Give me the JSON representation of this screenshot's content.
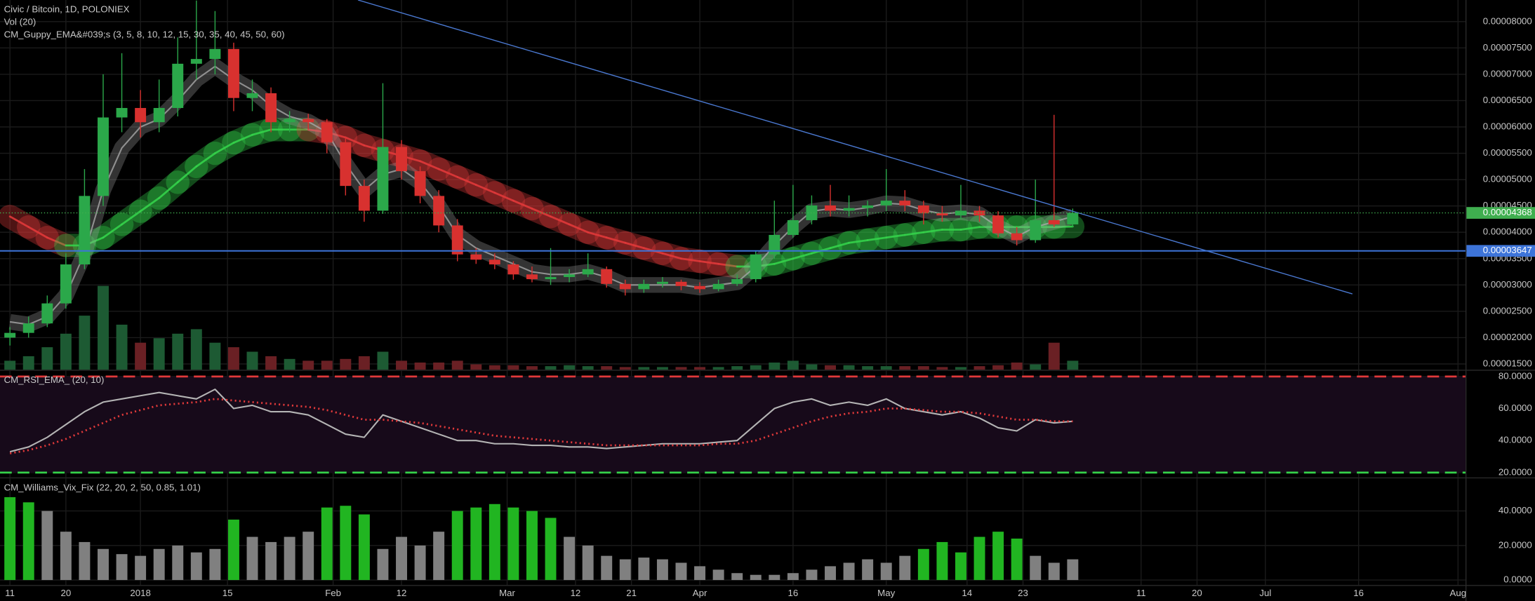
{
  "chart_data": [
    {
      "type": "candlestick",
      "title": "Civic / Bitcoin, 1D, POLONIEX",
      "x": [
        0,
        3,
        6,
        9,
        12,
        15,
        18,
        21,
        24,
        27,
        30,
        33,
        36,
        39,
        42,
        45,
        48,
        51,
        54,
        57,
        60,
        63,
        66,
        69,
        72,
        75,
        78,
        81,
        84,
        87,
        90,
        93,
        96,
        99,
        102,
        105,
        108,
        111,
        114,
        117,
        120,
        123,
        126,
        129,
        132,
        135,
        138,
        141,
        144,
        147,
        150,
        153,
        156,
        159,
        162,
        165,
        168,
        171
      ],
      "ohlc": [
        [
          2e-05,
          2.2e-05,
          1.85e-05,
          2.09e-05
        ],
        [
          2.09e-05,
          2.4e-05,
          2e-05,
          2.27e-05
        ],
        [
          2.27e-05,
          2.8e-05,
          2.2e-05,
          2.65e-05
        ],
        [
          2.65e-05,
          3.6e-05,
          2.55e-05,
          3.39e-05
        ],
        [
          3.39e-05,
          5.2e-05,
          3.3e-05,
          4.69e-05
        ],
        [
          4.69e-05,
          7e-05,
          4.5e-05,
          6.18e-05
        ],
        [
          6.18e-05,
          7.4e-05,
          5.9e-05,
          6.36e-05
        ],
        [
          6.36e-05,
          6.7e-05,
          5.8e-05,
          6.09e-05
        ],
        [
          6.09e-05,
          6.9e-05,
          5.9e-05,
          6.36e-05
        ],
        [
          6.36e-05,
          7.7e-05,
          6.2e-05,
          7.2e-05
        ],
        [
          7.2e-05,
          8.4e-05,
          6.9e-05,
          7.29e-05
        ],
        [
          7.29e-05,
          8.2e-05,
          7e-05,
          7.48e-05
        ],
        [
          7.48e-05,
          7.6e-05,
          6.3e-05,
          6.55e-05
        ],
        [
          6.55e-05,
          6.9e-05,
          6.3e-05,
          6.64e-05
        ],
        [
          6.64e-05,
          6.75e-05,
          5.9e-05,
          6.09e-05
        ],
        [
          6.09e-05,
          6.3e-05,
          5.9e-05,
          6.15e-05
        ],
        [
          6.15e-05,
          6.25e-05,
          5.95e-05,
          6.09e-05
        ],
        [
          6.09e-05,
          6.15e-05,
          5.5e-05,
          5.71e-05
        ],
        [
          5.71e-05,
          5.8e-05,
          4.7e-05,
          4.88e-05
        ],
        [
          4.88e-05,
          5e-05,
          4.2e-05,
          4.41e-05
        ],
        [
          4.41e-05,
          6.83e-05,
          4.35e-05,
          5.62e-05
        ],
        [
          5.62e-05,
          5.75e-05,
          5e-05,
          5.16e-05
        ],
        [
          5.16e-05,
          5.25e-05,
          4.55e-05,
          4.69e-05
        ],
        [
          4.69e-05,
          4.8e-05,
          4e-05,
          4.13e-05
        ],
        [
          4.13e-05,
          4.25e-05,
          3.45e-05,
          3.58e-05
        ],
        [
          3.58e-05,
          3.7e-05,
          3.4e-05,
          3.48e-05
        ],
        [
          3.48e-05,
          3.6e-05,
          3.3e-05,
          3.39e-05
        ],
        [
          3.39e-05,
          3.45e-05,
          3.1e-05,
          3.2e-05
        ],
        [
          3.2e-05,
          3.35e-05,
          3.05e-05,
          3.11e-05
        ],
        [
          3.11e-05,
          3.7e-05,
          3e-05,
          3.15e-05
        ],
        [
          3.15e-05,
          3.3e-05,
          3.05e-05,
          3.2e-05
        ],
        [
          3.2e-05,
          3.6e-05,
          3.15e-05,
          3.3e-05
        ],
        [
          3.3e-05,
          3.35e-05,
          2.95e-05,
          3.02e-05
        ],
        [
          3.02e-05,
          3.1e-05,
          2.8e-05,
          2.92e-05
        ],
        [
          2.92e-05,
          3.1e-05,
          2.85e-05,
          3.02e-05
        ],
        [
          3.02e-05,
          3.15e-05,
          2.95e-05,
          3.06e-05
        ],
        [
          3.06e-05,
          3.1e-05,
          2.9e-05,
          2.98e-05
        ],
        [
          2.98e-05,
          3.05e-05,
          2.85e-05,
          2.92e-05
        ],
        [
          2.92e-05,
          3.1e-05,
          2.88e-05,
          3.02e-05
        ],
        [
          3.02e-05,
          3.2e-05,
          2.98e-05,
          3.11e-05
        ],
        [
          3.11e-05,
          3.65e-05,
          3.05e-05,
          3.58e-05
        ],
        [
          3.58e-05,
          4.6e-05,
          3.5e-05,
          3.95e-05
        ],
        [
          3.95e-05,
          4.9e-05,
          3.9e-05,
          4.23e-05
        ],
        [
          4.23e-05,
          4.7e-05,
          4.15e-05,
          4.51e-05
        ],
        [
          4.51e-05,
          4.9e-05,
          4.3e-05,
          4.41e-05
        ],
        [
          4.41e-05,
          4.7e-05,
          4.3e-05,
          4.46e-05
        ],
        [
          4.46e-05,
          4.6e-05,
          4.3e-05,
          4.51e-05
        ],
        [
          4.51e-05,
          5.2e-05,
          4.4e-05,
          4.6e-05
        ],
        [
          4.6e-05,
          4.8e-05,
          4.4e-05,
          4.51e-05
        ],
        [
          4.51e-05,
          4.6e-05,
          4.15e-05,
          4.36e-05
        ],
        [
          4.36e-05,
          4.5e-05,
          4.2e-05,
          4.32e-05
        ],
        [
          4.32e-05,
          4.9e-05,
          4.25e-05,
          4.41e-05
        ],
        [
          4.41e-05,
          4.5e-05,
          4.2e-05,
          4.32e-05
        ],
        [
          4.32e-05,
          4.4e-05,
          3.9e-05,
          3.98e-05
        ],
        [
          3.98e-05,
          4.1e-05,
          3.75e-05,
          3.85e-05
        ],
        [
          3.85e-05,
          5e-05,
          3.8e-05,
          4.23e-05
        ],
        [
          4.23e-05,
          6.23e-05,
          4.1e-05,
          4.15e-05
        ],
        [
          4.15e-05,
          4.45e-05,
          4.1e-05,
          4.368e-05
        ]
      ],
      "up_color": "#2ba84a",
      "down_color": "#d8312f",
      "xlim": [
        -1.6,
        234.2
      ],
      "xticks": [
        {
          "value": 0,
          "label": "11"
        },
        {
          "value": 9,
          "label": "20"
        },
        {
          "value": 21,
          "label": "2018"
        },
        {
          "value": 35,
          "label": "15"
        },
        {
          "value": 52,
          "label": "Feb"
        },
        {
          "value": 63,
          "label": "12"
        },
        {
          "value": 80,
          "label": "Mar"
        },
        {
          "value": 91,
          "label": "12"
        },
        {
          "value": 100,
          "label": "21"
        },
        {
          "value": 111,
          "label": "Apr"
        },
        {
          "value": 126,
          "label": "16"
        },
        {
          "value": 141,
          "label": "May"
        },
        {
          "value": 154,
          "label": "14"
        },
        {
          "value": 163,
          "label": "23"
        },
        {
          "value": 182,
          "label": "11"
        },
        {
          "value": 191,
          "label": "20"
        },
        {
          "value": 202,
          "label": "Jul"
        },
        {
          "value": 217,
          "label": "16"
        },
        {
          "value": 233,
          "label": "Aug"
        }
      ],
      "ylim": [
        1.39e-05,
        8.41e-05
      ],
      "yticks": [
        {
          "value": 8e-05,
          "label": "0.00008000"
        },
        {
          "value": 7.5e-05,
          "label": "0.00007500"
        },
        {
          "value": 7e-05,
          "label": "0.00007000"
        },
        {
          "value": 6.5e-05,
          "label": "0.00006500"
        },
        {
          "value": 6e-05,
          "label": "0.00006000"
        },
        {
          "value": 5.5e-05,
          "label": "0.00005500"
        },
        {
          "value": 5e-05,
          "label": "0.00005000"
        },
        {
          "value": 4.5e-05,
          "label": "0.00004500"
        },
        {
          "value": 4e-05,
          "label": "0.00004000"
        },
        {
          "value": 3.5e-05,
          "label": "0.00003500"
        },
        {
          "value": 3e-05,
          "label": "0.00003000"
        },
        {
          "value": 2.5e-05,
          "label": "0.00002500"
        },
        {
          "value": 2e-05,
          "label": "0.00002000"
        },
        {
          "value": 1.5e-05,
          "label": "0.00001500"
        }
      ],
      "grid": true,
      "volume": {
        "label": "Vol (20)",
        "values": [
          10,
          15,
          25,
          40,
          60,
          93,
          50,
          30,
          35,
          40,
          45,
          30,
          25,
          20,
          15,
          12,
          10,
          10,
          12,
          15,
          20,
          10,
          8,
          8,
          10,
          6,
          5,
          5,
          4,
          4,
          5,
          4,
          4,
          3,
          3,
          3,
          3,
          3,
          3,
          4,
          5,
          8,
          10,
          6,
          5,
          5,
          4,
          4,
          4,
          4,
          3,
          3,
          4,
          5,
          8,
          6,
          30,
          10
        ],
        "ylim": [
          0,
          410
        ],
        "up_color": "#1d5a33",
        "down_color": "#6a2024"
      },
      "guppy": {
        "label": "CM_Guppy_EMA&#039;s (3, 5, 8, 10, 12, 15, 30, 35, 40, 45, 50, 60)",
        "short": [
          2.3e-05,
          2.25e-05,
          2.4e-05,
          2.8e-05,
          3.6e-05,
          4.8e-05,
          5.6e-05,
          6e-05,
          6.15e-05,
          6.5e-05,
          6.9e-05,
          7.15e-05,
          6.9e-05,
          6.7e-05,
          6.4e-05,
          6.2e-05,
          6.1e-05,
          5.9e-05,
          5.3e-05,
          4.8e-05,
          5.1e-05,
          5.2e-05,
          4.95e-05,
          4.5e-05,
          3.95e-05,
          3.7e-05,
          3.55e-05,
          3.4e-05,
          3.25e-05,
          3.2e-05,
          3.2e-05,
          3.25e-05,
          3.15e-05,
          3e-05,
          3e-05,
          3e-05,
          3e-05,
          2.95e-05,
          3e-05,
          3.05e-05,
          3.35e-05,
          3.75e-05,
          4.1e-05,
          4.4e-05,
          4.45e-05,
          4.42e-05,
          4.47e-05,
          4.55e-05,
          4.53e-05,
          4.42e-05,
          4.35e-05,
          4.38e-05,
          4.34e-05,
          4.1e-05,
          3.92e-05,
          4.1e-05,
          4.2e-05,
          4.3e-05
        ],
        "long": [
          4.3e-05,
          4.1e-05,
          3.9e-05,
          3.75e-05,
          3.75e-05,
          3.9e-05,
          4.15e-05,
          4.4e-05,
          4.65e-05,
          4.95e-05,
          5.25e-05,
          5.5e-05,
          5.7e-05,
          5.85e-05,
          5.95e-05,
          5.95e-05,
          5.95e-05,
          5.9e-05,
          5.8e-05,
          5.65e-05,
          5.55e-05,
          5.45e-05,
          5.35e-05,
          5.2e-05,
          5.05e-05,
          4.9e-05,
          4.75e-05,
          4.6e-05,
          4.45e-05,
          4.3e-05,
          4.15e-05,
          4e-05,
          3.9e-05,
          3.8e-05,
          3.7e-05,
          3.6e-05,
          3.5e-05,
          3.45e-05,
          3.4e-05,
          3.35e-05,
          3.35e-05,
          3.4e-05,
          3.5e-05,
          3.6e-05,
          3.7e-05,
          3.8e-05,
          3.85e-05,
          3.9e-05,
          3.95e-05,
          4e-05,
          4.05e-05,
          4.05e-05,
          4.1e-05,
          4.1e-05,
          4.1e-05,
          4.1e-05,
          4.1e-05,
          4.11e-05
        ],
        "short_color": "#a8a8a8",
        "up_color": "#35d24a",
        "down_color": "#e0393a"
      },
      "trendline": {
        "x": [
          56,
          216
        ],
        "y": [
          8.41e-05,
          2.83e-05
        ],
        "color": "#4a78d0"
      },
      "hline": {
        "value": 3.647e-05,
        "label": "0.00003647",
        "color": "#3d74d9"
      },
      "last_price": {
        "value": 4.368e-05,
        "label": "0.00004368",
        "color": "#3fae4f"
      }
    },
    {
      "type": "line",
      "title": "CM_RSI_EMA_ (20, 10)",
      "x": [
        0,
        3,
        6,
        9,
        12,
        15,
        18,
        21,
        24,
        27,
        30,
        33,
        36,
        39,
        42,
        45,
        48,
        51,
        54,
        57,
        60,
        63,
        66,
        69,
        72,
        75,
        78,
        81,
        84,
        87,
        90,
        93,
        96,
        99,
        102,
        105,
        108,
        111,
        114,
        117,
        120,
        123,
        126,
        129,
        132,
        135,
        138,
        141,
        144,
        147,
        150,
        153,
        156,
        159,
        162,
        165,
        168,
        171
      ],
      "series": [
        {
          "values": [
            33,
            36,
            42,
            50,
            58,
            64,
            66,
            68,
            70,
            68,
            66,
            72,
            60,
            62,
            58,
            58,
            56,
            50,
            44,
            42,
            56,
            52,
            48,
            44,
            40,
            40,
            38,
            38,
            37,
            37,
            36,
            36,
            35,
            36,
            37,
            38,
            38,
            38,
            39,
            40,
            50,
            60,
            64,
            66,
            62,
            64,
            62,
            66,
            60,
            58,
            56,
            58,
            54,
            48,
            46,
            53,
            51,
            52
          ],
          "color": "#b4b4b4"
        },
        {
          "values": [
            32,
            34,
            37,
            41,
            46,
            51,
            56,
            59,
            62,
            63,
            64,
            66,
            65,
            64,
            63,
            62,
            61,
            59,
            56,
            53,
            53,
            52,
            51,
            49,
            47,
            45,
            43,
            42,
            41,
            40,
            39,
            38,
            37,
            37,
            37,
            37,
            37,
            37,
            38,
            38,
            40,
            44,
            48,
            52,
            55,
            57,
            58,
            60,
            60,
            59,
            58,
            58,
            57,
            55,
            53,
            53,
            52,
            52
          ],
          "color": "#e0393a",
          "dotted": true
        }
      ],
      "ylim": [
        17,
        83.6
      ],
      "yticks": [
        {
          "value": 80,
          "label": "80.0000"
        },
        {
          "value": 60,
          "label": "60.0000"
        },
        {
          "value": 40,
          "label": "40.0000"
        },
        {
          "value": 20,
          "label": "20.0000"
        }
      ],
      "overbought": 80,
      "oversold": 20,
      "overbought_color": "#e0393a",
      "oversold_color": "#35d24a",
      "band_color": "#170a1a"
    },
    {
      "type": "bar",
      "title": "CM_Williams_Vix_Fix (22, 20, 2, 50, 0.85, 1.01)",
      "x": [
        0,
        3,
        6,
        9,
        12,
        15,
        18,
        21,
        24,
        27,
        30,
        33,
        36,
        39,
        42,
        45,
        48,
        51,
        54,
        57,
        60,
        63,
        66,
        69,
        72,
        75,
        78,
        81,
        84,
        87,
        90,
        93,
        96,
        99,
        102,
        105,
        108,
        111,
        114,
        117,
        120,
        123,
        126,
        129,
        132,
        135,
        138,
        141,
        144,
        147,
        150,
        153,
        156,
        159,
        162,
        165,
        168,
        171
      ],
      "values": [
        48,
        45,
        40,
        28,
        22,
        18,
        15,
        14,
        18,
        20,
        16,
        18,
        35,
        25,
        22,
        25,
        28,
        42,
        43,
        38,
        18,
        25,
        20,
        28,
        40,
        42,
        44,
        42,
        40,
        36,
        25,
        20,
        14,
        12,
        13,
        12,
        10,
        8,
        6,
        4,
        3,
        3,
        4,
        6,
        8,
        10,
        12,
        10,
        14,
        18,
        22,
        16,
        25,
        28,
        24,
        14,
        10,
        12
      ],
      "colors": [
        "#21b521",
        "#21b521",
        "#808080",
        "#808080",
        "#808080",
        "#808080",
        "#808080",
        "#808080",
        "#808080",
        "#808080",
        "#808080",
        "#808080",
        "#21b521",
        "#808080",
        "#808080",
        "#808080",
        "#808080",
        "#21b521",
        "#21b521",
        "#21b521",
        "#808080",
        "#808080",
        "#808080",
        "#808080",
        "#21b521",
        "#21b521",
        "#21b521",
        "#21b521",
        "#21b521",
        "#21b521",
        "#808080",
        "#808080",
        "#808080",
        "#808080",
        "#808080",
        "#808080",
        "#808080",
        "#808080",
        "#808080",
        "#808080",
        "#808080",
        "#808080",
        "#808080",
        "#808080",
        "#808080",
        "#808080",
        "#808080",
        "#808080",
        "#808080",
        "#21b521",
        "#21b521",
        "#21b521",
        "#21b521",
        "#21b521",
        "#21b521",
        "#808080",
        "#808080",
        "#808080"
      ],
      "ylim": [
        -2.86,
        58.9
      ],
      "yticks": [
        {
          "value": 40,
          "label": "40.0000"
        },
        {
          "value": 20,
          "label": "20.0000"
        },
        {
          "value": 0,
          "label": "0.0000"
        }
      ]
    }
  ]
}
